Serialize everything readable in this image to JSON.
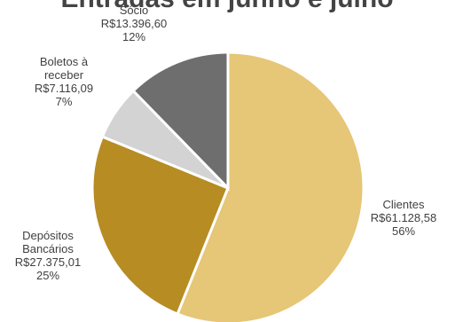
{
  "chart_data": {
    "type": "pie",
    "title": "Entradas em junho e julho",
    "slices": [
      {
        "name": "Clientes",
        "value": 61128.58,
        "value_label": "R$61.128,58",
        "percent_label": "56%",
        "color": "#E6C677"
      },
      {
        "name": "Depósitos Bancários",
        "value": 27375.01,
        "value_label": "R$27.375,01",
        "percent_label": "25%",
        "color": "#B68C23"
      },
      {
        "name": "Boletos à receber",
        "value": 7116.09,
        "value_label": "R$7.116,09",
        "percent_label": "7%",
        "color": "#D3D3D3"
      },
      {
        "name": "Sócio",
        "value": 13396.6,
        "value_label": "R$13.396,60",
        "percent_label": "12%",
        "color": "#6E6E6E"
      }
    ]
  }
}
